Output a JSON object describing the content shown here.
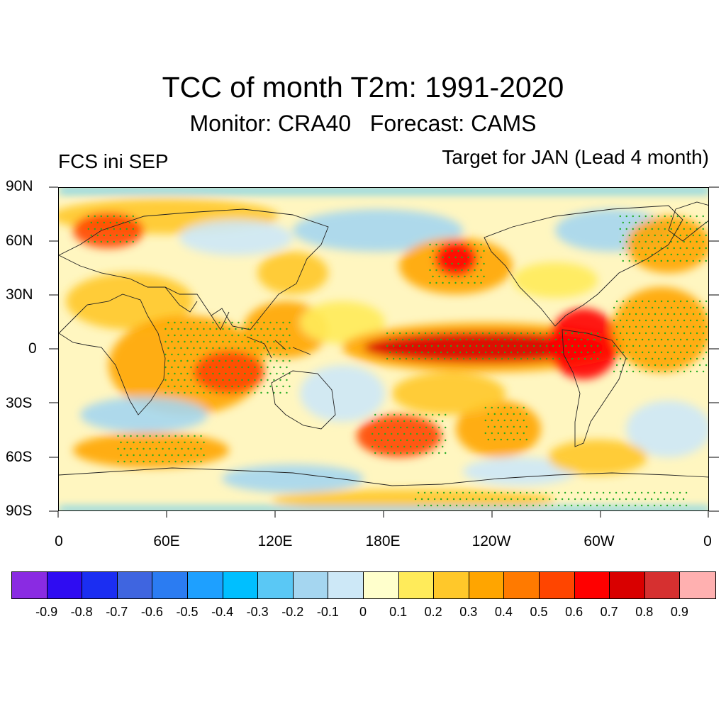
{
  "title": "TCC of month T2m: 1991-2020",
  "subtitle": "Monitor: CRA40   Forecast: CAMS",
  "left_label": "FCS ini SEP",
  "right_label": "Target for JAN (Lead 4 month)",
  "y_ticks": [
    "90N",
    "60N",
    "30N",
    "0",
    "30S",
    "60S",
    "90S"
  ],
  "x_ticks": [
    "0",
    "60E",
    "120E",
    "180E",
    "120W",
    "60W",
    "0"
  ],
  "colorbar": {
    "colors": [
      "#8a2be2",
      "#2f0cf2",
      "#1b2ef2",
      "#3f65e0",
      "#2b7cf2",
      "#1ea0ff",
      "#00bfff",
      "#5ac8f5",
      "#a5d6f0",
      "#cde8f7",
      "#ffffcc",
      "#ffeb5a",
      "#ffc82a",
      "#ffa500",
      "#ff7a00",
      "#ff4500",
      "#ff0000",
      "#d90000",
      "#d63030",
      "#ffb0b0"
    ],
    "labels": [
      "-0.9",
      "-0.8",
      "-0.7",
      "-0.6",
      "-0.5",
      "-0.4",
      "-0.3",
      "-0.2",
      "-0.1",
      "0",
      "0.1",
      "0.2",
      "0.3",
      "0.4",
      "0.5",
      "0.6",
      "0.7",
      "0.8",
      "0.9"
    ]
  },
  "map": {
    "lon_range": [
      0,
      360
    ],
    "lat_range": [
      -90,
      90
    ],
    "significance_dot_color": "#22aa22",
    "strong_dot_color": "#cc33cc"
  }
}
